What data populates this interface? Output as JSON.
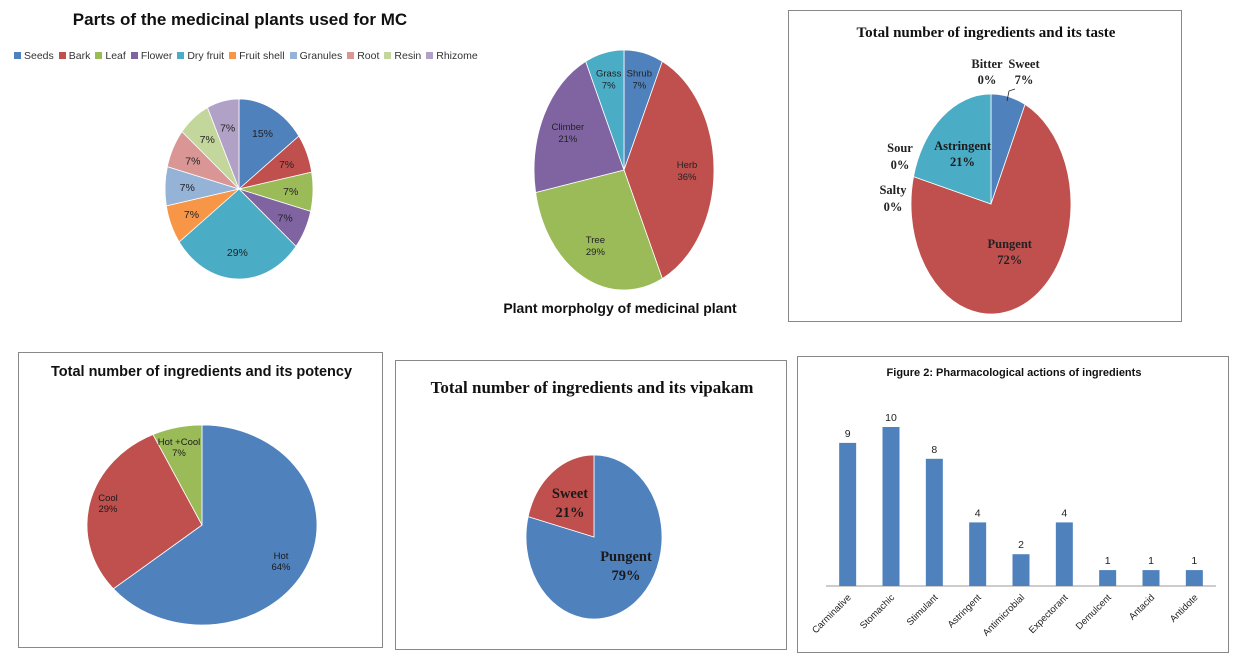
{
  "chart_data": [
    {
      "id": "parts",
      "type": "pie",
      "title": "Parts of the medicinal plants used for MC",
      "legend_position": "top",
      "slices": [
        {
          "label": "Seeds",
          "value": 15,
          "display": "15%",
          "color": "#4f81bd"
        },
        {
          "label": "Bark",
          "value": 7,
          "display": "7%",
          "color": "#c0504d"
        },
        {
          "label": "Leaf",
          "value": 7,
          "display": "7%",
          "color": "#9bbb59"
        },
        {
          "label": "Flower",
          "value": 7,
          "display": "7%",
          "color": "#8064a2"
        },
        {
          "label": "Dry fruit",
          "value": 29,
          "display": "29%",
          "color": "#4bacc6"
        },
        {
          "label": "Fruit shell",
          "value": 7,
          "display": "7%",
          "color": "#f79646"
        },
        {
          "label": "Granules",
          "value": 7,
          "display": "7%",
          "color": "#95b3d7"
        },
        {
          "label": "Root",
          "value": 7,
          "display": "7%",
          "color": "#da9694"
        },
        {
          "label": "Resin",
          "value": 7,
          "display": "7%",
          "color": "#c3d69b"
        },
        {
          "label": "Rhizome",
          "value": 7,
          "display": "7%",
          "color": "#b2a1c7"
        }
      ]
    },
    {
      "id": "morphology",
      "type": "pie",
      "title": "Plant morpholgy of medicinal plant",
      "slices": [
        {
          "label": "Shrub",
          "value": 7,
          "display": "7%",
          "color": "#4f81bd"
        },
        {
          "label": "Herb",
          "value": 36,
          "display": "36%",
          "color": "#c0504d"
        },
        {
          "label": "Tree",
          "value": 29,
          "display": "29%",
          "color": "#9bbb59"
        },
        {
          "label": "Climber",
          "value": 21,
          "display": "21%",
          "color": "#8064a2"
        },
        {
          "label": "Grass",
          "value": 7,
          "display": "7%",
          "color": "#4bacc6"
        }
      ]
    },
    {
      "id": "taste",
      "type": "pie",
      "title": "Total number of ingredients and its taste",
      "slices": [
        {
          "label": "Sweet",
          "value": 7,
          "display": "7%",
          "color": "#4f81bd"
        },
        {
          "label": "Pungent",
          "value": 72,
          "display": "72%",
          "color": "#c0504d"
        },
        {
          "label": "Astringent",
          "value": 21,
          "display": "21%",
          "color": "#4bacc6"
        },
        {
          "label": "Bitter",
          "value": 0,
          "display": "0%",
          "color": "#9bbb59"
        },
        {
          "label": "Sour",
          "value": 0,
          "display": "0%",
          "color": "#8064a2"
        },
        {
          "label": "Salty",
          "value": 0,
          "display": "0%",
          "color": "#f79646"
        }
      ]
    },
    {
      "id": "potency",
      "type": "pie",
      "title": "Total number of ingredients and its potency",
      "slices": [
        {
          "label": "Hot",
          "value": 64,
          "display": "64%",
          "color": "#4f81bd"
        },
        {
          "label": "Cool",
          "value": 29,
          "display": "29%",
          "color": "#c0504d"
        },
        {
          "label": "Hot +Cool",
          "value": 7,
          "display": "7%",
          "color": "#9bbb59"
        }
      ]
    },
    {
      "id": "vipakam",
      "type": "pie",
      "title": "Total number of ingredients and its vipakam",
      "slices": [
        {
          "label": "Pungent",
          "value": 79,
          "display": "79%",
          "color": "#4f81bd"
        },
        {
          "label": "Sweet",
          "value": 21,
          "display": "21%",
          "color": "#c0504d"
        }
      ]
    },
    {
      "id": "actions",
      "type": "bar",
      "title": "Figure 2: Pharmacological actions of ingredients",
      "categories": [
        "Carminative",
        "Stomachic",
        "Stimulant",
        "Astringent",
        "Antimicrobial",
        "Expectorant",
        "Demulcent",
        "Antacid",
        "Antidote"
      ],
      "values": [
        9,
        10,
        8,
        4,
        2,
        4,
        1,
        1,
        1
      ],
      "color": "#4f81bd",
      "ylim": [
        0,
        10
      ]
    }
  ]
}
